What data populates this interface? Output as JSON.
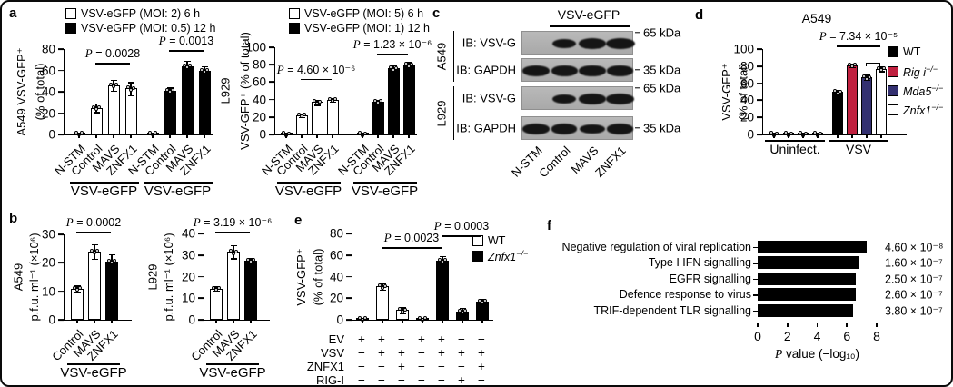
{
  "figure": {
    "background": "#ffffff",
    "border_color": "#0a0a0a"
  },
  "colors": {
    "white": "#ffffff",
    "black": "#000000",
    "red": "#c0203f",
    "blue": "#333070"
  },
  "panel_labels": {
    "a": "a",
    "b": "b",
    "c": "c",
    "d": "d",
    "e": "e",
    "f": "f"
  },
  "chart_data": [
    {
      "id": "a_left",
      "type": "bar",
      "ylabel_lines": [
        "A549 VSV-GFP⁺",
        "(% of total)"
      ],
      "ylim": [
        0,
        80
      ],
      "yticks": [
        0,
        20,
        40,
        60,
        80
      ],
      "legend": [
        {
          "label": "VSV-eGFP (MOI: 2) 6 h",
          "fill": "white"
        },
        {
          "label": "VSV-eGFP (MOI: 0.5) 12 h",
          "fill": "black"
        }
      ],
      "categories": [
        "N-STM",
        "Control",
        "MAVS",
        "ZNFX1",
        "N-STM",
        "Control",
        "MAVS",
        "ZNFX1"
      ],
      "values": [
        1,
        25,
        46,
        43,
        1,
        41,
        64,
        60
      ],
      "errors": [
        0.5,
        4,
        5,
        6,
        0.5,
        3,
        5,
        4
      ],
      "fills": [
        "white",
        "white",
        "white",
        "white",
        "black",
        "black",
        "black",
        "black"
      ],
      "groups": [
        {
          "label": "VSV-eGFP",
          "from": 0,
          "to": 3
        },
        {
          "label": "VSV-eGFP",
          "from": 4,
          "to": 7
        }
      ],
      "pvalues": [
        {
          "text": "P = 0.0028",
          "from": 1,
          "to": 3,
          "y": 67
        },
        {
          "text": "P = 0.0013",
          "from": 5,
          "to": 7,
          "y": 79
        }
      ]
    },
    {
      "id": "a_right",
      "type": "bar",
      "ylabel_lines": [
        "L929",
        "VSV-GFP⁺ (% of total)"
      ],
      "ylim": [
        0,
        100
      ],
      "yticks": [
        0,
        20,
        40,
        60,
        80,
        100
      ],
      "legend": [
        {
          "label": "VSV-eGFP (MOI: 5) 6 h",
          "fill": "white"
        },
        {
          "label": "VSV-eGFP (MOI: 1) 12 h",
          "fill": "black"
        }
      ],
      "categories": [
        "N-STM",
        "Control",
        "MAVS",
        "ZNFX1",
        "N-STM",
        "Control",
        "MAVS",
        "ZNFX1"
      ],
      "values": [
        1,
        22,
        37,
        40,
        1,
        38,
        76,
        80
      ],
      "errors": [
        0.5,
        2,
        3,
        2,
        0.5,
        2,
        4,
        3
      ],
      "fills": [
        "white",
        "white",
        "white",
        "white",
        "black",
        "black",
        "black",
        "black"
      ],
      "groups": [
        {
          "label": "VSV-eGFP",
          "from": 0,
          "to": 3
        },
        {
          "label": "VSV-eGFP",
          "from": 4,
          "to": 7
        }
      ],
      "pvalues": [
        {
          "text": "P = 4.60 × 10⁻⁶",
          "from": 1,
          "to": 3,
          "y": 64
        },
        {
          "text": "P = 1.23 × 10⁻⁶",
          "from": 5,
          "to": 7,
          "y": 93
        }
      ]
    },
    {
      "id": "b_left",
      "type": "bar",
      "ylabel_lines": [
        "A549",
        "p.f.u. ml⁻¹ (×10⁶)"
      ],
      "ylim": [
        0,
        30
      ],
      "yticks": [
        0,
        10,
        20,
        30
      ],
      "categories": [
        "Control",
        "MAVS",
        "ZNFX1"
      ],
      "values": [
        11,
        24,
        20.5
      ],
      "errors": [
        1,
        2.5,
        2.5
      ],
      "fills": [
        "white",
        "white",
        "black"
      ],
      "groups": [
        {
          "label": "VSV-eGFP",
          "from": 0,
          "to": 2
        }
      ],
      "pvalues": [
        {
          "text": "P = 0.0002",
          "from": 0,
          "to": 2,
          "y": 31
        }
      ]
    },
    {
      "id": "b_right",
      "type": "bar",
      "ylabel_lines": [
        "L929",
        "p.f.u. ml⁻¹ (×10⁶)"
      ],
      "ylim": [
        0,
        40
      ],
      "yticks": [
        0,
        10,
        20,
        30,
        40
      ],
      "categories": [
        "Control",
        "MAVS",
        "ZNFX1"
      ],
      "values": [
        14.5,
        31.5,
        27.5
      ],
      "errors": [
        1,
        3,
        1
      ],
      "fills": [
        "white",
        "white",
        "black"
      ],
      "groups": [
        {
          "label": "VSV-eGFP",
          "from": 0,
          "to": 2
        }
      ],
      "pvalues": [
        {
          "text": "P = 3.19 × 10⁻⁶",
          "from": 0,
          "to": 2,
          "y": 41
        }
      ]
    },
    {
      "id": "d",
      "type": "bar",
      "title": "A549",
      "ylabel_lines": [
        "VSV-GFP⁺",
        "(% of total)"
      ],
      "ylim": [
        0,
        100
      ],
      "yticks": [
        0,
        20,
        40,
        60,
        80,
        100
      ],
      "legend": [
        {
          "label": "WT",
          "fill": "black"
        },
        {
          "label": "Rig i",
          "sup": "−/−",
          "italic": true,
          "fill": "red"
        },
        {
          "label": "Mda5",
          "sup": "−/−",
          "italic": true,
          "fill": "blue"
        },
        {
          "label": "Znfx1",
          "sup": "−/−",
          "italic": true,
          "fill": "white"
        }
      ],
      "values": [
        1,
        1,
        1,
        1,
        50,
        81,
        67,
        77
      ],
      "errors": [
        0.4,
        0.4,
        0.4,
        0.4,
        2,
        2,
        3,
        3
      ],
      "fills": [
        "black",
        "red",
        "blue",
        "white",
        "black",
        "red",
        "blue",
        "white"
      ],
      "groups": [
        {
          "label": "Uninfect.",
          "from": 0,
          "to": 3
        },
        {
          "label": "VSV",
          "from": 4,
          "to": 7
        }
      ],
      "pvalues": [
        {
          "text": "P = 7.34 × 10⁻⁵",
          "from": 4,
          "to": 7,
          "y": 104
        },
        {
          "text": "",
          "from": 6,
          "to": 7,
          "y": 84,
          "ticks": true
        }
      ]
    },
    {
      "id": "e",
      "type": "bar",
      "ylabel_lines": [
        "VSV-GFP⁺",
        "(% of total)"
      ],
      "ylim": [
        0,
        80
      ],
      "yticks": [
        0,
        20,
        40,
        60,
        80
      ],
      "legend": [
        {
          "label": "WT",
          "fill": "white"
        },
        {
          "label": "Znfx1",
          "sup": "−/−",
          "italic": true,
          "fill": "black"
        }
      ],
      "values": [
        1,
        31,
        9,
        1,
        55,
        8,
        17
      ],
      "errors": [
        0.4,
        3,
        2.5,
        0.4,
        4,
        3,
        2.5
      ],
      "fills": [
        "white",
        "white",
        "white",
        "black",
        "black",
        "black",
        "black"
      ],
      "sign_rows": [
        {
          "label": "EV",
          "signs": [
            "+",
            "+",
            "−",
            "+",
            "+",
            "−",
            "−"
          ]
        },
        {
          "label": "VSV",
          "signs": [
            "−",
            "+",
            "+",
            "−",
            "+",
            "+",
            "+"
          ]
        },
        {
          "label": "ZNFX1",
          "signs": [
            "−",
            "−",
            "+",
            "−",
            "−",
            "−",
            "+"
          ]
        },
        {
          "label": "RIG-I",
          "signs": [
            "−",
            "−",
            "−",
            "−",
            "−",
            "+",
            "−"
          ]
        }
      ],
      "pvalues": [
        {
          "text": "P = 0.0023",
          "from": 1,
          "to": 4,
          "y": 67
        },
        {
          "text": "P = 0.0003",
          "from": 4,
          "to": 6,
          "y": 78
        }
      ]
    },
    {
      "id": "f",
      "type": "bar_h",
      "categories": [
        "Negative regulation of viral replication",
        "Type I IFN signalling",
        "EGFR signalling",
        "Defence response to virus",
        "TRIF-dependent TLR signalling"
      ],
      "values": [
        7.34,
        6.8,
        6.6,
        6.59,
        6.42
      ],
      "value_labels": [
        "4.60 × 10⁻⁸",
        "1.60 × 10⁻⁷",
        "2.50 × 10⁻⁷",
        "2.60 × 10⁻⁷",
        "3.80 × 10⁻⁷"
      ],
      "xlim": [
        0,
        8
      ],
      "xticks": [
        0,
        2,
        4,
        6,
        8
      ],
      "xlabel": "P value (−log₁₀)",
      "fill": "black"
    }
  ],
  "panel_c": {
    "header": "VSV-eGFP",
    "lanes": [
      "N-STM",
      "Control",
      "MAVS",
      "ZNFX1"
    ],
    "groups": [
      {
        "cell_line": "A549",
        "rows": [
          {
            "antibody": "IB: VSV-G",
            "marker": "65 kDa",
            "marker_pos": "top",
            "bands": [
              0,
              0.7,
              1.0,
              1.15
            ]
          },
          {
            "antibody": "IB: GAPDH",
            "marker": "35 kDa",
            "marker_pos": "middle",
            "bands": [
              1.0,
              0.95,
              0.95,
              0.9
            ]
          }
        ]
      },
      {
        "cell_line": "L929",
        "rows": [
          {
            "antibody": "IB: VSV-G",
            "marker": "65 kDa",
            "marker_pos": "top",
            "bands": [
              0,
              0.75,
              1.05,
              1.05
            ]
          },
          {
            "antibody": "IB: GAPDH",
            "marker": "35 kDa",
            "marker_pos": "middle",
            "bands": [
              1.0,
              0.9,
              0.85,
              0.9
            ]
          }
        ]
      }
    ]
  }
}
